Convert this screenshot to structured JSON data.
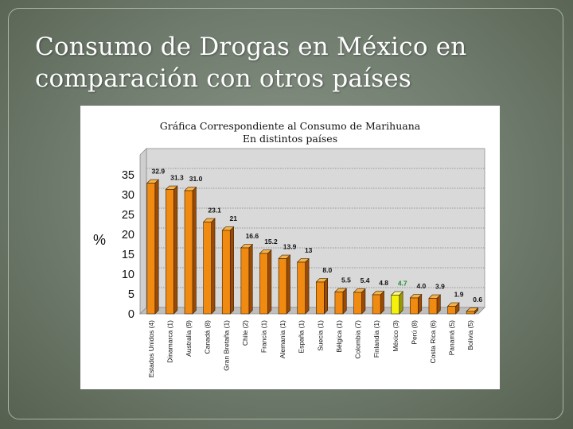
{
  "slide": {
    "title_line1": "Consumo de Drogas en México en",
    "title_line2": "comparación con otros países"
  },
  "chart_data": {
    "type": "bar",
    "title_line1": "Gráfica Correspondiente al Consumo de Marihuana",
    "title_line2": "En distintos países",
    "ylabel": "%",
    "xlabel": "",
    "ylim": [
      0,
      40
    ],
    "yticks": [
      0,
      5,
      10,
      15,
      20,
      25,
      30,
      35
    ],
    "grid": true,
    "categories": [
      "Estados Unidos (4)",
      "Dinamarca (1)",
      "Australia (9)",
      "Canadá (8)",
      "Gran Bretaña (1)",
      "Chile (2)",
      "Francia (1)",
      "Alemania (1)",
      "España (1)",
      "Suecia (1)",
      "Bélgica (1)",
      "Colombia (7)",
      "Finlandia (1)",
      "México (3)",
      "Perú (8)",
      "Costa Rica (6)",
      "Panamá (5)",
      "Bolivia (5)"
    ],
    "values": [
      32.9,
      31.3,
      31.0,
      23.1,
      21,
      16.6,
      15.2,
      13.9,
      13,
      8.0,
      5.5,
      5.4,
      4.8,
      4.7,
      4.0,
      3.9,
      1.9,
      0.6
    ],
    "value_labels": [
      "32.9",
      "31.3",
      "31.0",
      "23.1",
      "21",
      "16.6",
      "15.2",
      "13.9",
      "13",
      "8.0",
      "5.5",
      "5.4",
      "4.8",
      "4.7",
      "4.0",
      "3.9",
      "1.9",
      "0.6"
    ],
    "highlight_index": 13,
    "colors": {
      "bar_front": "#f08a10",
      "bar_side": "#9a4a05",
      "bar_top": "#f7b24a",
      "highlight_front": "#f2f20a",
      "highlight_side": "#9a9a06",
      "highlight_top": "#fafa88",
      "highlight_label": "#1f8f3a",
      "plot_back": "#d9d9d9",
      "plot_floor": "#bfbfbf",
      "grid": "#808080"
    }
  }
}
